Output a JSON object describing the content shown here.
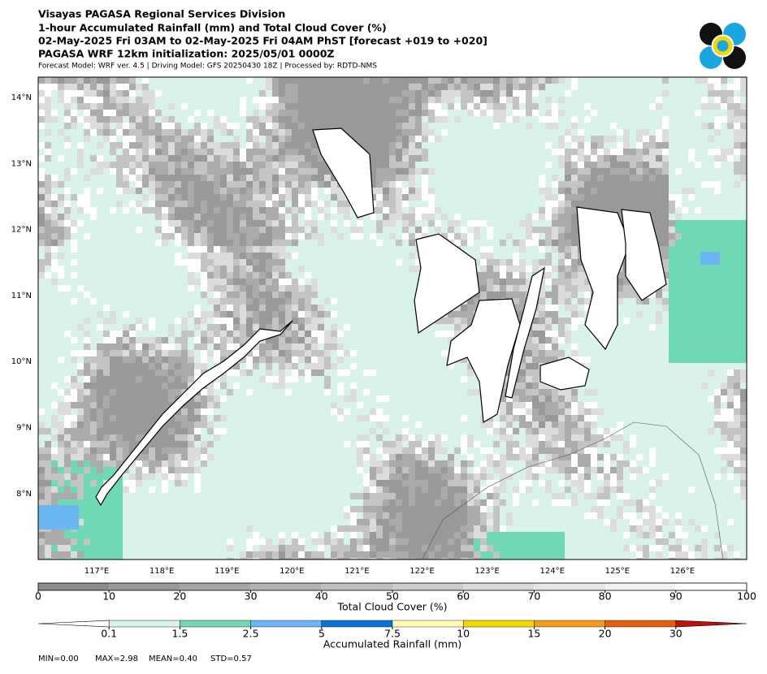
{
  "header": {
    "lines": [
      "Visayas PAGASA Regional Services Division",
      "1-hour Accumulated Rainfall (mm) and Total Cloud Cover (%)",
      "02-May-2025 Fri 03AM to 02-May-2025 Fri 04AM PhST [forecast +019 to +020]",
      "PAGASA WRF 12km initialization: 2025/05/01 0000Z"
    ],
    "note": "Forecast Model: WRF ver. 4.5 | Driving Model: GFS 20250430 18Z | Processed by: RDTD-NMS"
  },
  "map": {
    "lon_labels": [
      "117°E",
      "118°E",
      "119°E",
      "120°E",
      "121°E",
      "122°E",
      "123°E",
      "124°E",
      "125°E",
      "126°E"
    ],
    "lat_labels": [
      "14°N",
      "13°N",
      "12°N",
      "11°N",
      "10°N",
      "9°N",
      "8°N"
    ]
  },
  "colorbars": [
    {
      "label": "Total Cloud Cover (%)",
      "ticks": [
        0,
        10,
        20,
        30,
        40,
        50,
        60,
        70,
        80,
        90,
        100
      ],
      "colors": [
        "#8c8c8c",
        "#999999",
        "#a6a6a6",
        "#b3b3b3",
        "#bfbfbf",
        "#cccccc",
        "#d9d9d9",
        "#e6e6e6",
        "#f2f2f2",
        "#ffffff"
      ]
    },
    {
      "label": "Accumulated Rainfall (mm)",
      "ticks": [
        0.1,
        1.5,
        2.5,
        5,
        7.5,
        10,
        15,
        20,
        30
      ],
      "colors": [
        "#ffffff",
        "#d9f2ea",
        "#6fd9b5",
        "#6db6f4",
        "#0a72d4",
        "#fffcb8",
        "#f5d800",
        "#f29c1f",
        "#e45e0f",
        "#c40e0e"
      ]
    }
  ],
  "stats": [
    "MIN=0.00",
    "MAX=2.98",
    "MEAN=0.40",
    "STD=0.57"
  ]
}
